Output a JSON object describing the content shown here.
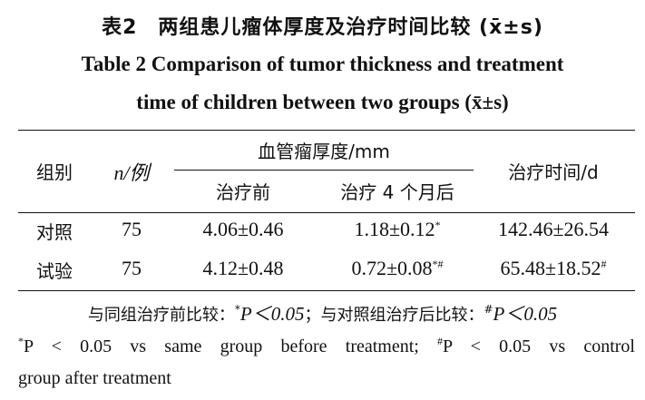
{
  "title_cn": "表2　两组患儿瘤体厚度及治疗时间比较 (x̄±s)",
  "title_en_line1": "Table 2    Comparison of tumor thickness and treatment",
  "title_en_line2": "time of children between two groups (x̄±s)",
  "headers": {
    "group": "组别",
    "n": "n/例",
    "thickness": "血管瘤厚度/mm",
    "before": "治疗前",
    "after4m": "治疗 4 个月后",
    "time": "治疗时间/d"
  },
  "rows": [
    {
      "group": "对照",
      "n": "75",
      "before": "4.06±0.46",
      "after": "1.18±0.12",
      "after_mark": "*",
      "time": "142.46±26.54",
      "time_mark": ""
    },
    {
      "group": "试验",
      "n": "75",
      "before": "4.12±0.48",
      "after": "0.72±0.08",
      "after_mark": "*#",
      "time": "65.48±18.52",
      "time_mark": "#"
    }
  ],
  "note_cn": {
    "part1": "与同组治疗前比较：",
    "mark1": "*",
    "p1": "P＜0.05",
    "part2": "；与对照组治疗后比较：",
    "mark2": "#",
    "p2": "P＜0.05"
  },
  "note_en": {
    "mark1": "*",
    "line1": "P < 0.05 vs same group before treatment; ",
    "mark2": "#",
    "line1b": "P < 0.05 vs control",
    "line2": "group after treatment"
  }
}
